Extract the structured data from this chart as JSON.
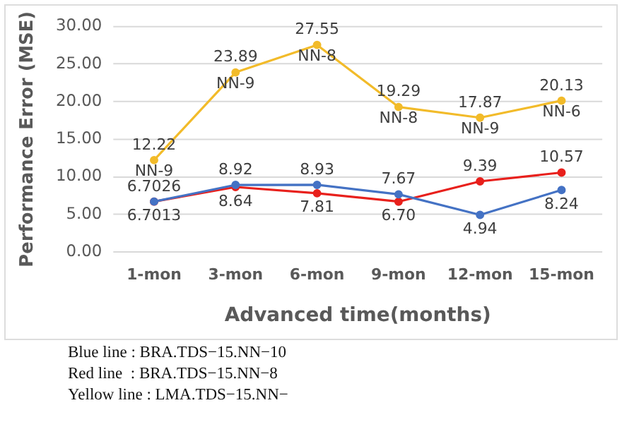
{
  "chart_data": {
    "type": "line",
    "xlabel": "Advanced time(months)",
    "ylabel": "Performance Error (MSE)",
    "categories": [
      "1-mon",
      "3-mon",
      "6-mon",
      "9-mon",
      "12-mon",
      "15-mon"
    ],
    "series": [
      {
        "color": "#4472c4",
        "values": [
          6.7026,
          8.92,
          8.93,
          7.67,
          4.94,
          8.24
        ],
        "value_labels": [
          "6.7026",
          "8.92",
          "8.93",
          "7.67",
          "4.94",
          "8.24"
        ]
      },
      {
        "color": "#e8201c",
        "values": [
          6.7013,
          8.64,
          7.81,
          6.7,
          9.39,
          10.57
        ],
        "value_labels": [
          "6.7013",
          "8.64",
          "7.81",
          "6.70",
          "9.39",
          "10.57"
        ]
      },
      {
        "color": "#f2bb2a",
        "values": [
          12.22,
          23.89,
          27.55,
          19.29,
          17.87,
          20.13
        ],
        "value_labels": [
          "12.22",
          "23.89",
          "27.55",
          "19.29",
          "17.87",
          "20.13"
        ]
      }
    ],
    "ylim": [
      0,
      30
    ],
    "yticks": [
      {
        "value": 0,
        "label": "0.00"
      },
      {
        "value": 5,
        "label": "5.00"
      },
      {
        "value": 10,
        "label": "10.00"
      },
      {
        "value": 15,
        "label": "15.00"
      },
      {
        "value": 20,
        "label": "20.00"
      },
      {
        "value": 25,
        "label": "25.00"
      },
      {
        "value": 30,
        "label": "30.00"
      }
    ],
    "grid": "y",
    "legend": false,
    "marker": "circle",
    "line_style": "solid",
    "annotations": [
      {
        "text": "NN-9",
        "x": "1-mon",
        "y": 12.22
      },
      {
        "text": "NN-9",
        "x": "3-mon",
        "y": 23.89
      },
      {
        "text": "NN-8",
        "x": "6-mon",
        "y": 27.55
      },
      {
        "text": "NN-8",
        "x": "9-mon",
        "y": 19.29
      },
      {
        "text": "NN-9",
        "x": "12-mon",
        "y": 17.87
      },
      {
        "text": "NN-6",
        "x": "15-mon",
        "y": 20.13
      },
      "Blue line : BRA.TDS−15.NN−10",
      "Red line  : BRA.TDS−15.NN−8",
      "Yellow line : LMA.TDS−15.NN−"
    ]
  }
}
